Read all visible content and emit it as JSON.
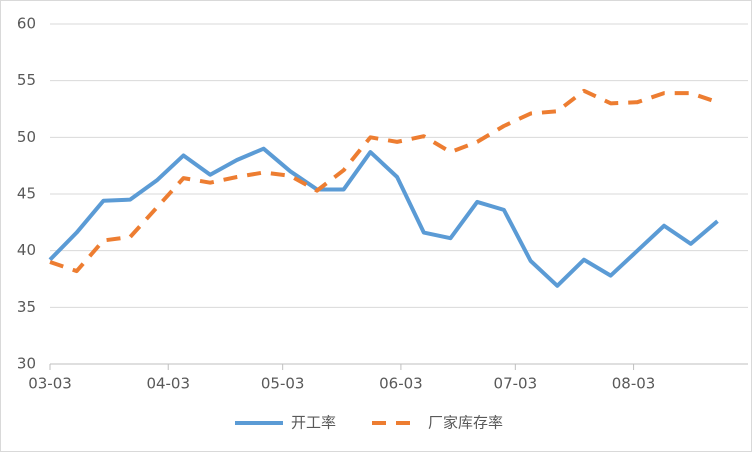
{
  "chart_data": {
    "type": "line",
    "x": [
      "03-03",
      "03-10",
      "03-17",
      "03-24",
      "03-31",
      "04-07",
      "04-14",
      "04-21",
      "04-28",
      "05-05",
      "05-12",
      "05-19",
      "05-26",
      "06-02",
      "06-09",
      "06-16",
      "06-23",
      "06-30",
      "07-07",
      "07-14",
      "07-21",
      "07-28",
      "08-04",
      "08-11",
      "08-18",
      "08-25"
    ],
    "series": [
      {
        "name": "开工率",
        "color": "#5b9bd5",
        "dash": false,
        "values": [
          39.2,
          41.6,
          44.4,
          44.5,
          46.2,
          48.4,
          46.7,
          48.0,
          49.0,
          47.0,
          45.4,
          45.4,
          48.7,
          46.5,
          41.6,
          41.1,
          44.3,
          43.6,
          39.1,
          36.9,
          39.2,
          37.8,
          40.0,
          42.2,
          40.6,
          42.6
        ]
      },
      {
        "name": "厂家库存率",
        "color": "#ed7d31",
        "dash": true,
        "values": [
          39.0,
          38.2,
          40.9,
          41.2,
          43.8,
          46.4,
          46.0,
          46.5,
          46.9,
          46.6,
          45.3,
          47.1,
          50.0,
          49.6,
          50.1,
          48.7,
          49.6,
          51.0,
          52.1,
          52.3,
          54.1,
          53.0,
          53.1,
          53.9,
          53.9,
          53.1
        ]
      }
    ],
    "xlim": [
      "03-03",
      "09-02"
    ],
    "xticks": [
      "03-03",
      "04-03",
      "05-03",
      "06-03",
      "07-03",
      "08-03"
    ],
    "ylim": [
      30,
      60
    ],
    "yticks": [
      30,
      35,
      40,
      45,
      50,
      55,
      60
    ],
    "grid": true,
    "legend": "bottom"
  }
}
